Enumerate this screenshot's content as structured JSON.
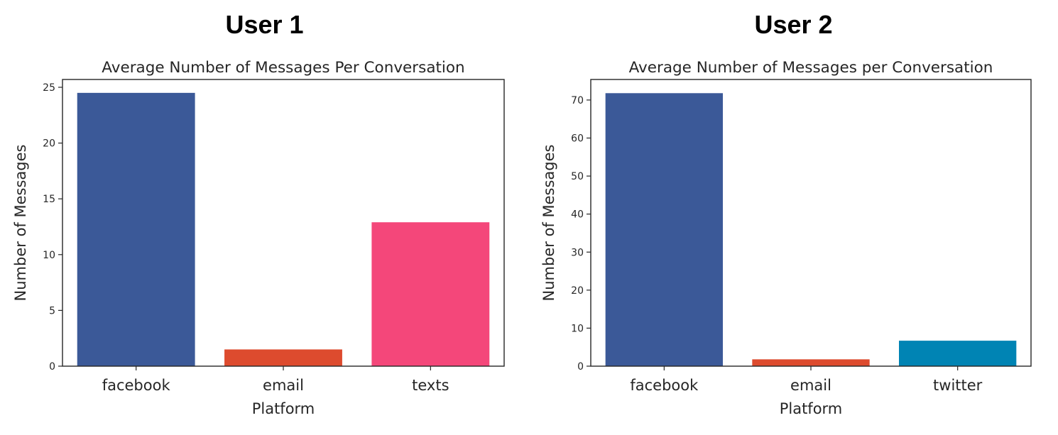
{
  "panels": [
    {
      "heading": "User 1",
      "chart": {
        "type": "bar",
        "title": "Average Number of Messages Per Conversation",
        "xlabel": "Platform",
        "ylabel": "Number of Messages",
        "categories": [
          "facebook",
          "email",
          "texts"
        ],
        "values": [
          24.5,
          1.5,
          12.9
        ],
        "colors": [
          "#3b5998",
          "#dd4b2e",
          "#f4477a"
        ],
        "ylim": [
          0,
          25.7
        ],
        "yticks": [
          0,
          5,
          10,
          15,
          20,
          25
        ],
        "grid": false
      }
    },
    {
      "heading": "User 2",
      "chart": {
        "type": "bar",
        "title": "Average Number of Messages per Conversation",
        "xlabel": "Platform",
        "ylabel": "Number of Messages",
        "categories": [
          "facebook",
          "email",
          "twitter"
        ],
        "values": [
          71.8,
          1.8,
          6.7
        ],
        "colors": [
          "#3b5998",
          "#dd4b2e",
          "#0084b4"
        ],
        "ylim": [
          0,
          75.4
        ],
        "yticks": [
          0,
          10,
          20,
          30,
          40,
          50,
          60,
          70
        ],
        "grid": false
      }
    }
  ],
  "chart_data": [
    {
      "type": "bar",
      "title": "Average Number of Messages Per Conversation",
      "xlabel": "Platform",
      "ylabel": "Number of Messages",
      "categories": [
        "facebook",
        "email",
        "texts"
      ],
      "values": [
        24.5,
        1.5,
        12.9
      ],
      "ylim": [
        0,
        25.7
      ],
      "grid": false
    },
    {
      "type": "bar",
      "title": "Average Number of Messages per Conversation",
      "xlabel": "Platform",
      "ylabel": "Number of Messages",
      "categories": [
        "facebook",
        "email",
        "twitter"
      ],
      "values": [
        71.8,
        1.8,
        6.7
      ],
      "ylim": [
        0,
        75.4
      ],
      "grid": false
    }
  ]
}
